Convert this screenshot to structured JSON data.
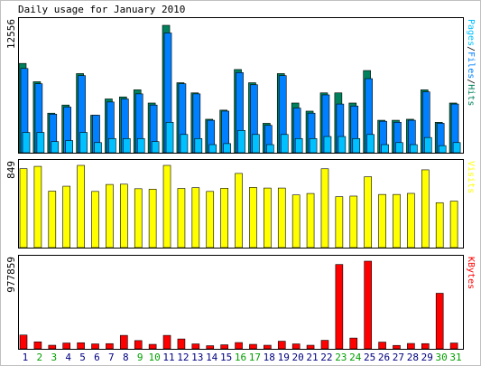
{
  "title": "Daily usage for January 2010",
  "colors": {
    "hits": "#00805c",
    "files": "#0080ff",
    "pages": "#00c0ff",
    "visits": "#ffff00",
    "kbytes": "#ff0000",
    "weekend": "#00a000",
    "weekday": "#000080",
    "panel_bg": "#ffffff",
    "frame": "#c0c0c0"
  },
  "chart_data": [
    {
      "type": "bar",
      "panel": "hits-files-pages",
      "ylabel": "12556",
      "legend": [
        "Pages",
        "/",
        "Files",
        "/",
        "Hits"
      ],
      "legend_colors": [
        "#00c0ff",
        "#000000",
        "#0080ff",
        "#000000",
        "#00805c"
      ],
      "ylim": [
        0,
        12556
      ],
      "categories": [
        "1",
        "2",
        "3",
        "4",
        "5",
        "6",
        "7",
        "8",
        "9",
        "10",
        "11",
        "12",
        "13",
        "14",
        "15",
        "16",
        "17",
        "18",
        "19",
        "20",
        "21",
        "22",
        "23",
        "24",
        "25",
        "26",
        "27",
        "28",
        "29",
        "30",
        "31"
      ],
      "series": [
        {
          "name": "Hits",
          "values": [
            8800,
            7000,
            3900,
            4700,
            7800,
            3700,
            5300,
            5500,
            6200,
            4900,
            12556,
            6900,
            5900,
            3300,
            4200,
            8200,
            6900,
            2900,
            7800,
            4900,
            4100,
            5900,
            5900,
            4900,
            8100,
            3200,
            3200,
            3300,
            6200,
            3000,
            4900
          ]
        },
        {
          "name": "Files",
          "values": [
            8300,
            6800,
            3800,
            4500,
            7600,
            3700,
            5000,
            5300,
            5800,
            4700,
            11800,
            6800,
            5800,
            3200,
            4100,
            7900,
            6700,
            2700,
            7600,
            4400,
            3900,
            5700,
            4800,
            4600,
            7300,
            3100,
            3000,
            3200,
            6000,
            2900,
            4800
          ]
        },
        {
          "name": "Pages",
          "values": [
            2000,
            2000,
            1100,
            1200,
            2000,
            1000,
            1400,
            1400,
            1400,
            1100,
            3000,
            1800,
            1400,
            800,
            900,
            2200,
            1800,
            800,
            1800,
            1400,
            1400,
            1600,
            1600,
            1400,
            1800,
            800,
            1000,
            800,
            1500,
            700,
            1000
          ]
        }
      ]
    },
    {
      "type": "bar",
      "panel": "visits",
      "ylabel": "849",
      "legend": [
        "Visits"
      ],
      "legend_colors": [
        "#ffff00"
      ],
      "ylim": [
        0,
        849
      ],
      "categories": [
        "1",
        "2",
        "3",
        "4",
        "5",
        "6",
        "7",
        "8",
        "9",
        "10",
        "11",
        "12",
        "13",
        "14",
        "15",
        "16",
        "17",
        "18",
        "19",
        "20",
        "21",
        "22",
        "23",
        "24",
        "25",
        "26",
        "27",
        "28",
        "29",
        "30",
        "31"
      ],
      "series": [
        {
          "name": "Visits",
          "values": [
            815,
            839,
            583,
            634,
            849,
            580,
            652,
            655,
            608,
            603,
            849,
            611,
            619,
            580,
            613,
            766,
            622,
            615,
            615,
            544,
            559,
            814,
            526,
            532,
            732,
            549,
            549,
            560,
            803,
            464,
            480
          ]
        }
      ]
    },
    {
      "type": "bar",
      "panel": "kbytes",
      "ylabel": "977859",
      "legend": [
        "KBytes"
      ],
      "legend_colors": [
        "#ff0000"
      ],
      "ylim": [
        0,
        977859
      ],
      "categories": [
        "1",
        "2",
        "3",
        "4",
        "5",
        "6",
        "7",
        "8",
        "9",
        "10",
        "11",
        "12",
        "13",
        "14",
        "15",
        "16",
        "17",
        "18",
        "19",
        "20",
        "21",
        "22",
        "23",
        "24",
        "25",
        "26",
        "27",
        "28",
        "29",
        "30",
        "31"
      ],
      "series": [
        {
          "name": "KBytes",
          "values": [
            154000,
            78000,
            40000,
            65000,
            68000,
            55000,
            58000,
            150000,
            92000,
            50000,
            150000,
            110000,
            55000,
            35000,
            45000,
            70000,
            50000,
            40000,
            85000,
            55000,
            40000,
            95000,
            941000,
            120000,
            977859,
            75000,
            38000,
            60000,
            58000,
            620000,
            65000
          ]
        }
      ]
    }
  ],
  "weekend_days": [
    "2",
    "3",
    "9",
    "10",
    "16",
    "17",
    "23",
    "24",
    "30",
    "31"
  ]
}
